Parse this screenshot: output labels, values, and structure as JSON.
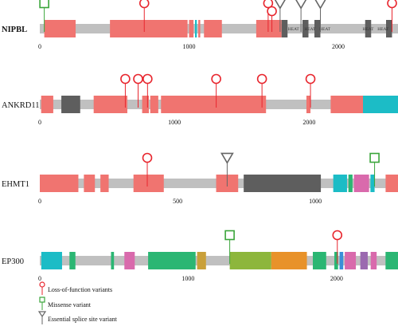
{
  "colors": {
    "backbone": "#c0c0c0",
    "lof": "#e8262e",
    "missense": "#3aa53a",
    "splice": "#666666",
    "salmon": "#f07470",
    "dark": "#5e5e5e",
    "teal": "#1cbcc6",
    "green": "#2bb673",
    "pink": "#d96aac",
    "olive": "#8db63c",
    "orange": "#e8922a",
    "gold": "#c9a03a",
    "blue": "#3a8fd8",
    "purple": "#9b6ab0"
  },
  "genes": [
    {
      "name": "NIPBL",
      "bold": true,
      "scale_max": 2400,
      "ticks": [
        0,
        1000,
        2000
      ],
      "domains": [
        {
          "start": 30,
          "end": 240,
          "color": "salmon"
        },
        {
          "start": 470,
          "end": 990,
          "color": "salmon"
        },
        {
          "start": 1000,
          "end": 1030,
          "color": "salmon"
        },
        {
          "start": 1040,
          "end": 1052,
          "color": "teal"
        },
        {
          "start": 1062,
          "end": 1075,
          "color": "salmon"
        },
        {
          "start": 1100,
          "end": 1220,
          "color": "salmon"
        },
        {
          "start": 1450,
          "end": 1620,
          "color": "salmon"
        },
        {
          "start": 1620,
          "end": 1660,
          "color": "dark"
        },
        {
          "start": 1760,
          "end": 1800,
          "color": "dark"
        },
        {
          "start": 1840,
          "end": 1880,
          "color": "dark"
        },
        {
          "start": 2180,
          "end": 2220,
          "color": "dark"
        },
        {
          "start": 2320,
          "end": 2360,
          "color": "dark"
        }
      ],
      "domain_labels": [
        {
          "pos": 1700,
          "text": "HEAT"
        },
        {
          "pos": 1810,
          "text": "HEAT"
        },
        {
          "pos": 1910,
          "text": "HEAT"
        },
        {
          "pos": 2200,
          "text": "HEAT"
        },
        {
          "pos": 2300,
          "text": "HEAT"
        }
      ],
      "variants": [
        {
          "pos": 30,
          "type": "missense",
          "height": 32
        },
        {
          "pos": 700,
          "type": "lof",
          "height": 32
        },
        {
          "pos": 1530,
          "type": "lof",
          "height": 32
        },
        {
          "pos": 1555,
          "type": "lof",
          "height": 22
        },
        {
          "pos": 1610,
          "type": "splice",
          "height": 32
        },
        {
          "pos": 1750,
          "type": "splice",
          "height": 32
        },
        {
          "pos": 1880,
          "type": "splice",
          "height": 32
        },
        {
          "pos": 2360,
          "type": "lof",
          "height": 32
        }
      ]
    },
    {
      "name": "ANKRD11",
      "bold": false,
      "scale_max": 2660,
      "ticks": [
        0,
        1000,
        2000
      ],
      "domains": [
        {
          "start": 10,
          "end": 100,
          "color": "salmon"
        },
        {
          "start": 160,
          "end": 300,
          "color": "dark"
        },
        {
          "start": 400,
          "end": 650,
          "color": "salmon"
        },
        {
          "start": 760,
          "end": 810,
          "color": "salmon"
        },
        {
          "start": 820,
          "end": 880,
          "color": "salmon"
        },
        {
          "start": 900,
          "end": 1680,
          "color": "salmon"
        },
        {
          "start": 1980,
          "end": 2010,
          "color": "salmon"
        },
        {
          "start": 2160,
          "end": 2400,
          "color": "salmon"
        },
        {
          "start": 2400,
          "end": 2660,
          "color": "teal"
        }
      ],
      "domain_labels": [],
      "variants": [
        {
          "pos": 635,
          "type": "lof",
          "height": 32
        },
        {
          "pos": 730,
          "type": "lof",
          "height": 32
        },
        {
          "pos": 800,
          "type": "lof",
          "height": 32
        },
        {
          "pos": 1310,
          "type": "lof",
          "height": 32
        },
        {
          "pos": 1650,
          "type": "lof",
          "height": 32
        },
        {
          "pos": 2010,
          "type": "lof",
          "height": 32
        }
      ]
    },
    {
      "name": "EHMT1",
      "bold": false,
      "scale_max": 1300,
      "ticks": [
        0,
        500,
        1000
      ],
      "domains": [
        {
          "start": 0,
          "end": 140,
          "color": "salmon"
        },
        {
          "start": 160,
          "end": 200,
          "color": "salmon"
        },
        {
          "start": 220,
          "end": 250,
          "color": "salmon"
        },
        {
          "start": 340,
          "end": 450,
          "color": "salmon"
        },
        {
          "start": 640,
          "end": 720,
          "color": "salmon"
        },
        {
          "start": 740,
          "end": 1020,
          "color": "dark"
        },
        {
          "start": 1065,
          "end": 1115,
          "color": "teal"
        },
        {
          "start": 1120,
          "end": 1135,
          "color": "green"
        },
        {
          "start": 1140,
          "end": 1195,
          "color": "pink"
        },
        {
          "start": 1200,
          "end": 1215,
          "color": "teal"
        },
        {
          "start": 1255,
          "end": 1300,
          "color": "salmon"
        }
      ],
      "domain_labels": [],
      "variants": [
        {
          "pos": 390,
          "type": "lof",
          "height": 32
        },
        {
          "pos": 680,
          "type": "splice",
          "height": 32
        },
        {
          "pos": 1215,
          "type": "missense",
          "height": 32
        }
      ]
    },
    {
      "name": "EP300",
      "bold": false,
      "scale_max": 2414,
      "ticks": [
        0,
        1000,
        2000
      ],
      "domains": [
        {
          "start": 10,
          "end": 150,
          "color": "teal"
        },
        {
          "start": 200,
          "end": 240,
          "color": "green"
        },
        {
          "start": 480,
          "end": 500,
          "color": "green"
        },
        {
          "start": 570,
          "end": 640,
          "color": "pink"
        },
        {
          "start": 730,
          "end": 1050,
          "color": "green"
        },
        {
          "start": 1060,
          "end": 1120,
          "color": "gold"
        },
        {
          "start": 1280,
          "end": 1560,
          "color": "olive"
        },
        {
          "start": 1560,
          "end": 1800,
          "color": "orange"
        },
        {
          "start": 1840,
          "end": 1930,
          "color": "green"
        },
        {
          "start": 1985,
          "end": 2010,
          "color": "green"
        },
        {
          "start": 2020,
          "end": 2045,
          "color": "blue"
        },
        {
          "start": 2055,
          "end": 2130,
          "color": "pink"
        },
        {
          "start": 2160,
          "end": 2210,
          "color": "purple"
        },
        {
          "start": 2230,
          "end": 2270,
          "color": "pink"
        },
        {
          "start": 2330,
          "end": 2414,
          "color": "green"
        }
      ],
      "domain_labels": [],
      "variants": [
        {
          "pos": 1280,
          "type": "missense",
          "height": 32
        },
        {
          "pos": 2005,
          "type": "lof",
          "height": 32
        }
      ]
    }
  ],
  "legend": [
    {
      "type": "lof",
      "label": "Loss-of-function variants"
    },
    {
      "type": "missense",
      "label": "Missense variant"
    },
    {
      "type": "splice",
      "label": "Essential splice site variant"
    }
  ]
}
